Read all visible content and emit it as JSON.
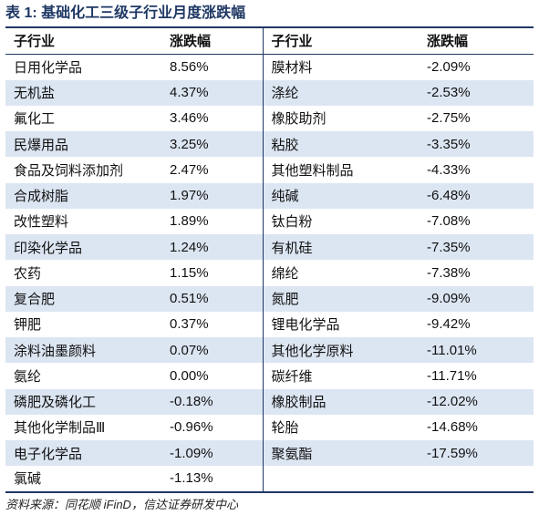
{
  "title": "表 1: 基础化工三级子行业月度涨跌幅",
  "headers": [
    "子行业",
    "涨跌幅",
    "子行业",
    "涨跌幅"
  ],
  "rows": [
    {
      "left": {
        "name": "日用化学品",
        "change": "8.56%"
      },
      "right": {
        "name": "膜材料",
        "change": "-2.09%"
      }
    },
    {
      "left": {
        "name": "无机盐",
        "change": "4.37%"
      },
      "right": {
        "name": "涤纶",
        "change": "-2.53%"
      }
    },
    {
      "left": {
        "name": "氟化工",
        "change": "3.46%"
      },
      "right": {
        "name": "橡胶助剂",
        "change": "-2.75%"
      }
    },
    {
      "left": {
        "name": "民爆用品",
        "change": "3.25%"
      },
      "right": {
        "name": "粘胶",
        "change": "-3.35%"
      }
    },
    {
      "left": {
        "name": "食品及饲料添加剂",
        "change": "2.47%"
      },
      "right": {
        "name": "其他塑料制品",
        "change": "-4.33%"
      }
    },
    {
      "left": {
        "name": "合成树脂",
        "change": "1.97%"
      },
      "right": {
        "name": "纯碱",
        "change": "-6.48%"
      }
    },
    {
      "left": {
        "name": "改性塑料",
        "change": "1.89%"
      },
      "right": {
        "name": "钛白粉",
        "change": "-7.08%"
      }
    },
    {
      "left": {
        "name": "印染化学品",
        "change": "1.24%"
      },
      "right": {
        "name": "有机硅",
        "change": "-7.35%"
      }
    },
    {
      "left": {
        "name": "农药",
        "change": "1.15%"
      },
      "right": {
        "name": "绵纶",
        "change": "-7.38%"
      }
    },
    {
      "left": {
        "name": "复合肥",
        "change": "0.51%"
      },
      "right": {
        "name": "氮肥",
        "change": "-9.09%"
      }
    },
    {
      "left": {
        "name": "钾肥",
        "change": "0.37%"
      },
      "right": {
        "name": "锂电化学品",
        "change": "-9.42%"
      }
    },
    {
      "left": {
        "name": "涂料油墨颜料",
        "change": "0.07%"
      },
      "right": {
        "name": "其他化学原料",
        "change": "-11.01%"
      }
    },
    {
      "left": {
        "name": "氨纶",
        "change": "0.00%"
      },
      "right": {
        "name": "碳纤维",
        "change": "-11.71%"
      }
    },
    {
      "left": {
        "name": "磷肥及磷化工",
        "change": "-0.18%"
      },
      "right": {
        "name": "橡胶制品",
        "change": "-12.02%"
      }
    },
    {
      "left": {
        "name": "其他化学制品Ⅲ",
        "change": "-0.96%"
      },
      "right": {
        "name": "轮胎",
        "change": "-14.68%"
      }
    },
    {
      "left": {
        "name": "电子化学品",
        "change": "-1.09%"
      },
      "right": {
        "name": "聚氨酯",
        "change": "-17.59%"
      }
    },
    {
      "left": {
        "name": "氯碱",
        "change": "-1.13%"
      },
      "right": {
        "name": "",
        "change": ""
      }
    }
  ],
  "source": "资料来源：同花顺 iFinD，信达证券研发中心",
  "colors": {
    "accent": "#1f3864",
    "shade": "#dce6f2"
  }
}
